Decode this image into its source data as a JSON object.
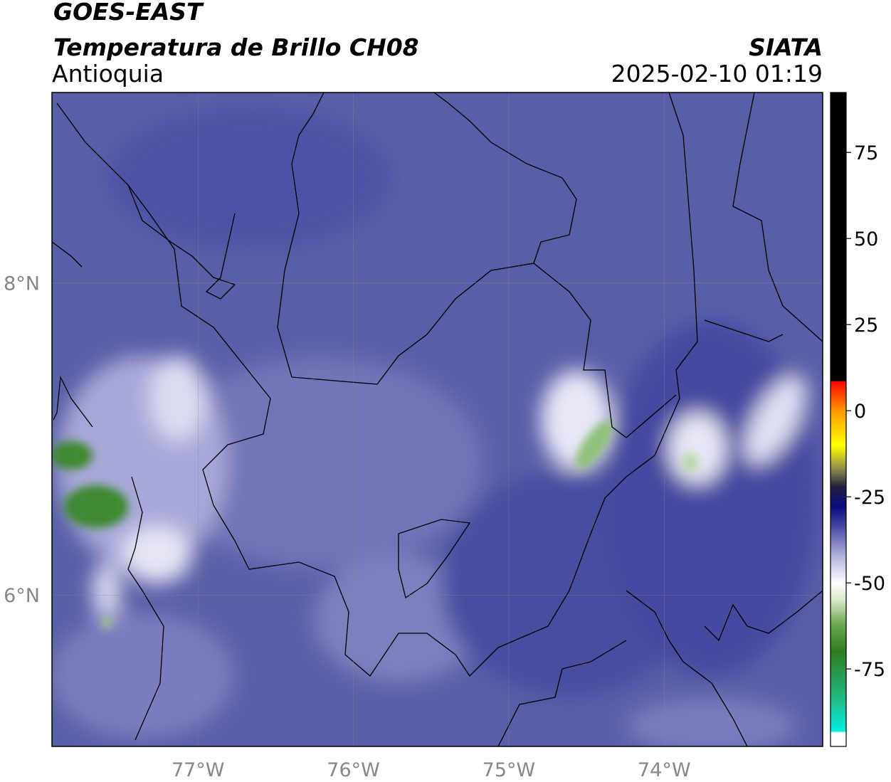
{
  "header": {
    "title": "GOES-EAST",
    "subtitle": "Temperatura de Brillo CH08",
    "region": "Antioquia",
    "source": "SIATA",
    "datetime": "2025-02-10 01:19"
  },
  "map": {
    "xlim": [
      -77.94,
      -72.98
    ],
    "ylim": [
      5.03,
      9.22
    ],
    "xticks": [
      {
        "value": -77,
        "label": "77°W"
      },
      {
        "value": -76,
        "label": "76°W"
      },
      {
        "value": -75,
        "label": "75°W"
      },
      {
        "value": -74,
        "label": "74°W"
      }
    ],
    "yticks": [
      {
        "value": 6,
        "label": "6°N"
      },
      {
        "value": 8,
        "label": "8°N"
      }
    ],
    "grid": true
  },
  "colorbar": {
    "lim": [
      -97.5,
      92.4
    ],
    "ticks": [
      75,
      50,
      25,
      0,
      -25,
      -50,
      -75
    ],
    "stops": [
      {
        "value": -97.5,
        "color": "#ffffff"
      },
      {
        "value": -93.5,
        "color": "#ffffff"
      },
      {
        "value": -93,
        "color": "#00f0e0"
      },
      {
        "value": -85,
        "color": "#20c090"
      },
      {
        "value": -70,
        "color": "#2e7d1e"
      },
      {
        "value": -62,
        "color": "#6aa84f"
      },
      {
        "value": -55,
        "color": "#d8e8c8"
      },
      {
        "value": -50,
        "color": "#ffffff"
      },
      {
        "value": -42,
        "color": "#b0b0dc"
      },
      {
        "value": -34,
        "color": "#4c4ca8"
      },
      {
        "value": -28,
        "color": "#0a0a80"
      },
      {
        "value": -22,
        "color": "#202040"
      },
      {
        "value": -17,
        "color": "#8a8a50"
      },
      {
        "value": -10,
        "color": "#ffff00"
      },
      {
        "value": 0,
        "color": "#ff9900"
      },
      {
        "value": 8.6,
        "color": "#ff0000"
      },
      {
        "value": 8.7,
        "color": "#000000"
      },
      {
        "value": 92.4,
        "color": "#000000"
      }
    ]
  }
}
